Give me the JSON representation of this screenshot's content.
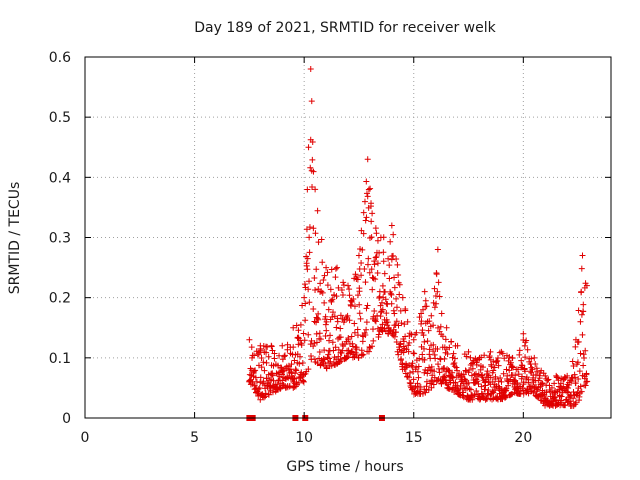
{
  "chart_data": {
    "type": "scatter",
    "title": "Day 189 of 2021, SRMTID for receiver welk",
    "xlabel": "GPS time / hours",
    "ylabel": "SRMTID / TECUs",
    "xlim": [
      0,
      24
    ],
    "ylim": [
      0,
      0.6
    ],
    "xticks": [
      0,
      5,
      10,
      15,
      20
    ],
    "yticks": [
      0,
      0.1,
      0.2,
      0.3,
      0.4,
      0.5,
      0.6
    ],
    "xtick_labels": [
      "0",
      "5",
      "10",
      "15",
      "20"
    ],
    "ytick_labels": [
      "0",
      "0.1",
      "0.2",
      "0.3",
      "0.4",
      "0.5",
      "0.6"
    ],
    "grid": true,
    "marker": "+",
    "color": "#e00000",
    "envelope_description": "approximate upper/lower extent of the '+' point cloud, x in hours, y in TECU",
    "envelope": {
      "x": [
        7.5,
        8.0,
        8.5,
        9.0,
        9.5,
        10.0,
        10.2,
        10.3,
        10.5,
        11.0,
        11.5,
        12.0,
        12.5,
        12.9,
        13.1,
        13.5,
        14.0,
        14.5,
        15.0,
        15.5,
        15.8,
        16.1,
        16.5,
        17.0,
        17.5,
        18.0,
        18.5,
        19.0,
        19.5,
        20.0,
        20.5,
        21.0,
        21.5,
        22.0,
        22.4,
        22.7,
        22.9
      ],
      "upper": [
        0.13,
        0.12,
        0.12,
        0.12,
        0.15,
        0.2,
        0.45,
        0.58,
        0.38,
        0.25,
        0.25,
        0.22,
        0.27,
        0.43,
        0.34,
        0.3,
        0.32,
        0.2,
        0.13,
        0.21,
        0.17,
        0.28,
        0.15,
        0.12,
        0.11,
        0.1,
        0.11,
        0.11,
        0.1,
        0.14,
        0.1,
        0.07,
        0.07,
        0.07,
        0.13,
        0.27,
        0.22
      ],
      "lower": [
        0.06,
        0.03,
        0.04,
        0.05,
        0.05,
        0.06,
        0.08,
        0.09,
        0.09,
        0.08,
        0.09,
        0.1,
        0.1,
        0.11,
        0.11,
        0.14,
        0.14,
        0.08,
        0.04,
        0.04,
        0.05,
        0.06,
        0.05,
        0.04,
        0.03,
        0.03,
        0.03,
        0.03,
        0.04,
        0.04,
        0.04,
        0.02,
        0.02,
        0.02,
        0.02,
        0.04,
        0.06
      ]
    },
    "baseline_markers": {
      "description": "small filled square markers on the x axis at y = 0",
      "x": [
        7.5,
        7.65,
        9.6,
        10.05,
        13.55
      ],
      "y": 0
    }
  }
}
